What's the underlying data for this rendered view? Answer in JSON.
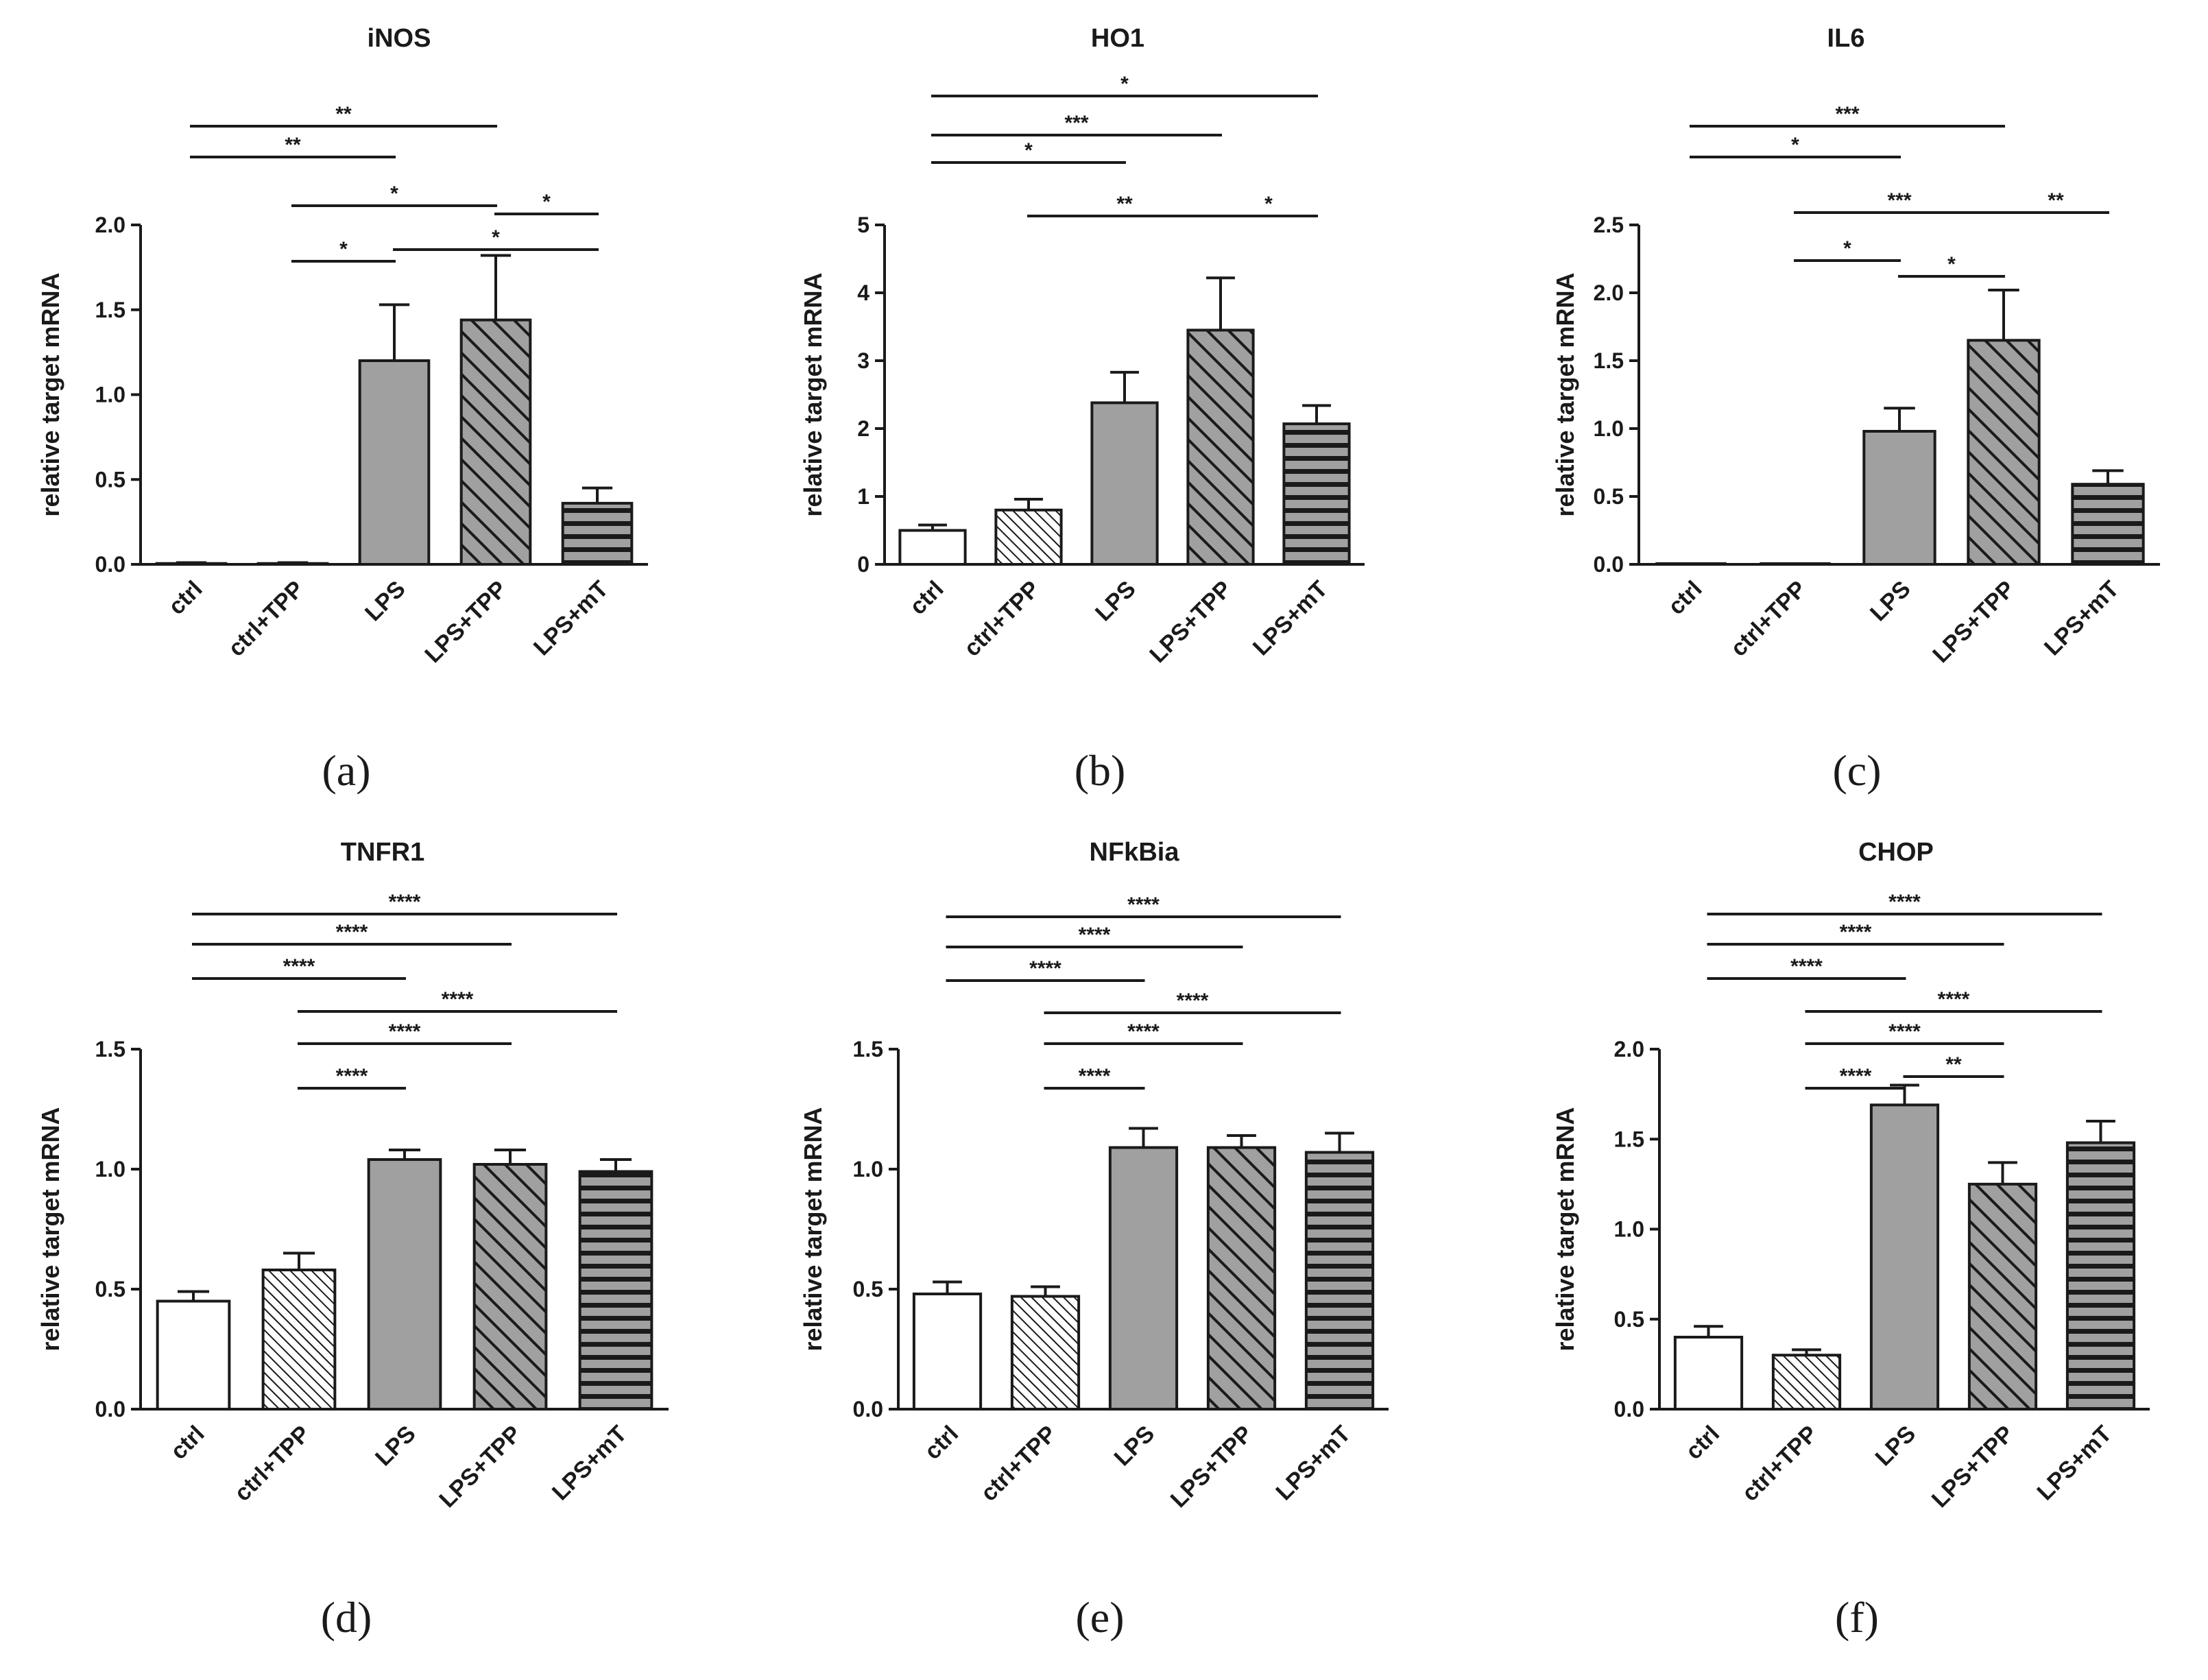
{
  "colors": {
    "ink": "#1a1a1a",
    "gray_fill": "#a0a0a0",
    "white_fill": "#ffffff",
    "background": "#ffffff"
  },
  "chart_data": [
    {
      "id": "a",
      "type": "bar",
      "title": "iNOS",
      "ylabel": "relative target mRNA",
      "xlabel": "",
      "panel_label": "(a)",
      "categories": [
        "ctrl",
        "ctrl+TPP",
        "LPS",
        "LPS+TPP",
        "LPS+mT"
      ],
      "values": [
        0.005,
        0.005,
        1.2,
        1.44,
        0.36
      ],
      "errors": [
        0.005,
        0.005,
        0.33,
        0.38,
        0.09
      ],
      "fills": [
        "open",
        "fine-diagonal",
        "solid-gray",
        "gray-diagonal",
        "gray-horizontal"
      ],
      "ylim": [
        0,
        2.0
      ],
      "yticks": [
        0,
        0.5,
        1.0,
        1.5,
        2.0
      ],
      "ytick_labels": [
        "0.0",
        "0.5",
        "1.0",
        "1.5",
        "2.0"
      ],
      "significance": [
        {
          "from": "ctrl",
          "to": "LPS+TPP",
          "label": "**"
        },
        {
          "from": "ctrl",
          "to": "LPS",
          "label": "**"
        },
        {
          "from": "ctrl+TPP",
          "to": "LPS+TPP",
          "label": "*"
        },
        {
          "from": "LPS+TPP",
          "to": "LPS+mT",
          "label": "*"
        },
        {
          "from": "LPS",
          "to": "LPS+mT",
          "label": "*"
        },
        {
          "from": "ctrl+TPP",
          "to": "LPS",
          "label": "*"
        }
      ]
    },
    {
      "id": "b",
      "type": "bar",
      "title": "HO1",
      "ylabel": "relative target mRNA",
      "xlabel": "",
      "panel_label": "(b)",
      "categories": [
        "ctrl",
        "ctrl+TPP",
        "LPS",
        "LPS+TPP",
        "LPS+mT"
      ],
      "values": [
        0.5,
        0.8,
        2.38,
        3.45,
        2.07
      ],
      "errors": [
        0.08,
        0.16,
        0.45,
        0.77,
        0.27
      ],
      "fills": [
        "open",
        "fine-diagonal",
        "solid-gray",
        "gray-diagonal",
        "gray-horizontal"
      ],
      "ylim": [
        0,
        5
      ],
      "yticks": [
        0,
        1,
        2,
        3,
        4,
        5
      ],
      "ytick_labels": [
        "0",
        "1",
        "2",
        "3",
        "4",
        "5"
      ],
      "significance": [
        {
          "from": "ctrl",
          "to": "LPS+mT",
          "label": "*"
        },
        {
          "from": "ctrl",
          "to": "LPS+TPP",
          "label": "***"
        },
        {
          "from": "ctrl",
          "to": "LPS",
          "label": "*"
        },
        {
          "from": "ctrl+TPP",
          "to": "LPS+TPP",
          "label": "**"
        },
        {
          "from": "LPS+TPP",
          "to": "LPS+mT",
          "label": "*"
        }
      ]
    },
    {
      "id": "c",
      "type": "bar",
      "title": "IL6",
      "ylabel": "relative target mRNA",
      "xlabel": "",
      "panel_label": "(c)",
      "categories": [
        "ctrl",
        "ctrl+TPP",
        "LPS",
        "LPS+TPP",
        "LPS+mT"
      ],
      "values": [
        0.0,
        0.0,
        0.98,
        1.65,
        0.59
      ],
      "errors": [
        0.0,
        0.0,
        0.17,
        0.37,
        0.1
      ],
      "fills": [
        "open",
        "fine-diagonal",
        "solid-gray",
        "gray-diagonal",
        "gray-horizontal"
      ],
      "ylim": [
        0,
        2.5
      ],
      "yticks": [
        0,
        0.5,
        1.0,
        1.5,
        2.0,
        2.5
      ],
      "ytick_labels": [
        "0.0",
        "0.5",
        "1.0",
        "1.5",
        "2.0",
        "2.5"
      ],
      "significance": [
        {
          "from": "ctrl",
          "to": "LPS+TPP",
          "label": "***"
        },
        {
          "from": "ctrl",
          "to": "LPS",
          "label": "*"
        },
        {
          "from": "ctrl+TPP",
          "to": "LPS+TPP",
          "label": "***"
        },
        {
          "from": "LPS+TPP",
          "to": "LPS+mT",
          "label": "**"
        },
        {
          "from": "ctrl+TPP",
          "to": "LPS",
          "label": "*"
        },
        {
          "from": "LPS",
          "to": "LPS+TPP",
          "label": "*"
        }
      ]
    },
    {
      "id": "d",
      "type": "bar",
      "title": "TNFR1",
      "ylabel": "relative target mRNA",
      "xlabel": "",
      "panel_label": "(d)",
      "categories": [
        "ctrl",
        "ctrl+TPP",
        "LPS",
        "LPS+TPP",
        "LPS+mT"
      ],
      "values": [
        0.45,
        0.58,
        1.04,
        1.02,
        0.99
      ],
      "errors": [
        0.04,
        0.07,
        0.04,
        0.06,
        0.05
      ],
      "fills": [
        "open",
        "fine-diagonal",
        "solid-gray",
        "gray-diagonal",
        "gray-horizontal"
      ],
      "ylim": [
        0,
        1.5
      ],
      "yticks": [
        0,
        0.5,
        1.0,
        1.5
      ],
      "ytick_labels": [
        "0.0",
        "0.5",
        "1.0",
        "1.5"
      ],
      "significance": [
        {
          "from": "ctrl",
          "to": "LPS+mT",
          "label": "****"
        },
        {
          "from": "ctrl",
          "to": "LPS+TPP",
          "label": "****"
        },
        {
          "from": "ctrl",
          "to": "LPS",
          "label": "****"
        },
        {
          "from": "ctrl+TPP",
          "to": "LPS+mT",
          "label": "****"
        },
        {
          "from": "ctrl+TPP",
          "to": "LPS+TPP",
          "label": "****"
        },
        {
          "from": "ctrl+TPP",
          "to": "LPS",
          "label": "****"
        }
      ]
    },
    {
      "id": "e",
      "type": "bar",
      "title": "NFkBia",
      "ylabel": "relative target mRNA",
      "xlabel": "",
      "panel_label": "(e)",
      "categories": [
        "ctrl",
        "ctrl+TPP",
        "LPS",
        "LPS+TPP",
        "LPS+mT"
      ],
      "values": [
        0.48,
        0.47,
        1.09,
        1.09,
        1.07
      ],
      "errors": [
        0.05,
        0.04,
        0.08,
        0.05,
        0.08
      ],
      "fills": [
        "open",
        "fine-diagonal",
        "solid-gray",
        "gray-diagonal",
        "gray-horizontal"
      ],
      "ylim": [
        0,
        1.5
      ],
      "yticks": [
        0,
        0.5,
        1.0,
        1.5
      ],
      "ytick_labels": [
        "0.0",
        "0.5",
        "1.0",
        "1.5"
      ],
      "significance": [
        {
          "from": "ctrl",
          "to": "LPS+mT",
          "label": "****"
        },
        {
          "from": "ctrl",
          "to": "LPS+TPP",
          "label": "****"
        },
        {
          "from": "ctrl",
          "to": "LPS",
          "label": "****"
        },
        {
          "from": "ctrl+TPP",
          "to": "LPS+mT",
          "label": "****"
        },
        {
          "from": "ctrl+TPP",
          "to": "LPS+TPP",
          "label": "****"
        },
        {
          "from": "ctrl+TPP",
          "to": "LPS",
          "label": "****"
        }
      ]
    },
    {
      "id": "f",
      "type": "bar",
      "title": "CHOP",
      "ylabel": "relative target mRNA",
      "xlabel": "",
      "panel_label": "(f)",
      "categories": [
        "ctrl",
        "ctrl+TPP",
        "LPS",
        "LPS+TPP",
        "LPS+mT"
      ],
      "values": [
        0.4,
        0.3,
        1.69,
        1.25,
        1.48
      ],
      "errors": [
        0.06,
        0.03,
        0.11,
        0.12,
        0.12
      ],
      "fills": [
        "open",
        "fine-diagonal",
        "solid-gray",
        "gray-diagonal",
        "gray-horizontal"
      ],
      "ylim": [
        0,
        2.0
      ],
      "yticks": [
        0,
        0.5,
        1.0,
        1.5,
        2.0
      ],
      "ytick_labels": [
        "0.0",
        "0.5",
        "1.0",
        "1.5",
        "2.0"
      ],
      "significance": [
        {
          "from": "ctrl",
          "to": "LPS+mT",
          "label": "****"
        },
        {
          "from": "ctrl",
          "to": "LPS+TPP",
          "label": "****"
        },
        {
          "from": "ctrl",
          "to": "LPS",
          "label": "****"
        },
        {
          "from": "ctrl+TPP",
          "to": "LPS+mT",
          "label": "****"
        },
        {
          "from": "ctrl+TPP",
          "to": "LPS+TPP",
          "label": "****"
        },
        {
          "from": "ctrl+TPP",
          "to": "LPS",
          "label": "****"
        },
        {
          "from": "LPS",
          "to": "LPS+TPP",
          "label": "**"
        }
      ]
    }
  ]
}
